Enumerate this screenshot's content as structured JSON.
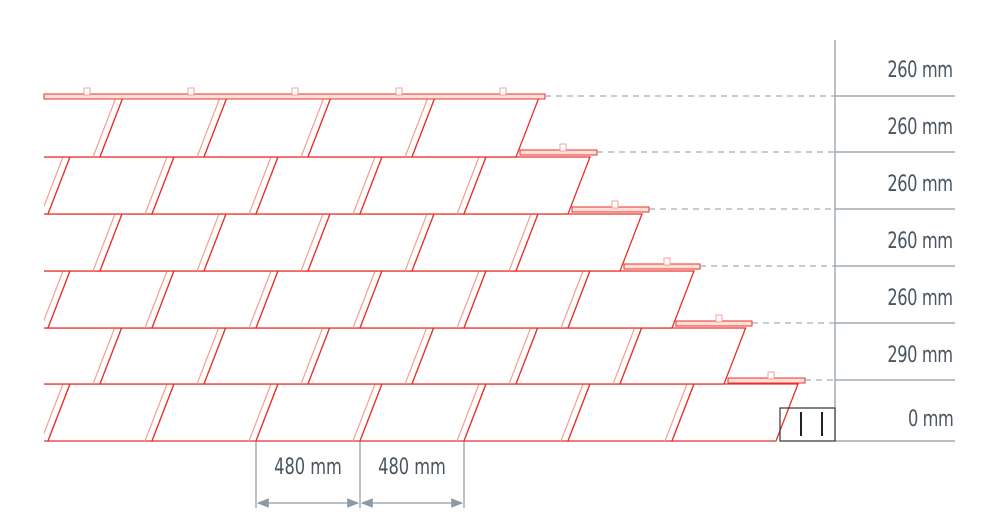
{
  "colors": {
    "tile_stroke": "#e8302a",
    "tile_light": "#f4a090",
    "dimension": "#8d99a3",
    "text": "#4a5560"
  },
  "vertical_dimensions": [
    "260 mm",
    "260 mm",
    "260 mm",
    "260 mm",
    "260 mm",
    "290 mm",
    "0 mm"
  ],
  "horizontal_dimensions": [
    "480 mm",
    "480 mm"
  ]
}
